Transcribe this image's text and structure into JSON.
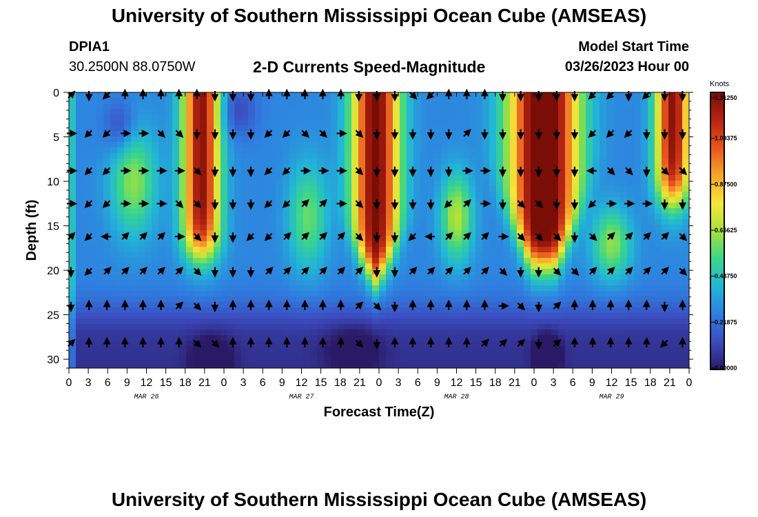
{
  "header": {
    "title": "University of Southern Mississippi Ocean Cube (AMSEAS)",
    "station": "DPIA1",
    "coords": "30.2500N  88.0750W",
    "subtitle": "2-D Currents Speed-Magnitude",
    "model_start_label": "Model Start Time",
    "model_start_value": "03/26/2023 Hour 00"
  },
  "footer": {
    "title": "University of Southern Mississippi Ocean Cube (AMSEAS)"
  },
  "chart_data": {
    "type": "heatmap",
    "title": "2-D Currents Speed-Magnitude",
    "xlabel": "Forecast Time(Z)",
    "ylabel": "Depth (ft)",
    "x_range_hours": [
      0,
      96
    ],
    "xlim": [
      0,
      96
    ],
    "ylim": [
      31,
      0
    ],
    "x_tick_hours": [
      0,
      3,
      6,
      9,
      12,
      15,
      18,
      21,
      24,
      27,
      30,
      33,
      36,
      39,
      42,
      45,
      48,
      51,
      54,
      57,
      60,
      63,
      66,
      69,
      72,
      75,
      78,
      81,
      84,
      87,
      90,
      93,
      96
    ],
    "x_tick_labels": [
      "0",
      "3",
      "6",
      "9",
      "12",
      "15",
      "18",
      "21",
      "0",
      "3",
      "6",
      "9",
      "12",
      "15",
      "18",
      "21",
      "0",
      "3",
      "6",
      "9",
      "12",
      "15",
      "18",
      "21",
      "0",
      "3",
      "6",
      "9",
      "12",
      "15",
      "18",
      "21",
      "0"
    ],
    "date_labels": [
      {
        "hour": 12,
        "text": "MAR 26"
      },
      {
        "hour": 36,
        "text": "MAR 27"
      },
      {
        "hour": 60,
        "text": "MAR 28"
      },
      {
        "hour": 84,
        "text": "MAR 29"
      }
    ],
    "y_ticks": [
      0,
      5,
      10,
      15,
      20,
      25,
      30
    ],
    "colorbar": {
      "unit": "Knots",
      "vmin": 0.0,
      "vmax": 1.3125,
      "tick_values": [
        1.3125,
        1.09375,
        0.875,
        0.65625,
        0.4375,
        0.21875,
        0.0
      ],
      "tick_labels": [
        "1.31250",
        "1.09375",
        "0.87500",
        "0.65625",
        "0.43750",
        "0.21875",
        "0.00000"
      ],
      "colors": [
        "#2a1a66",
        "#3b4cc0",
        "#2f7fe0",
        "#21b6d6",
        "#3bd68a",
        "#a6e23a",
        "#f5e63a",
        "#f8a52a",
        "#e8561f",
        "#b52412",
        "#7a0d06"
      ]
    },
    "arrow_depths": [
      0,
      4.3,
      8.5,
      12.2,
      15.9,
      19.8,
      23.7,
      27.9
    ],
    "arrow_hours": [
      0.0,
      2.78,
      5.57,
      8.35,
      11.14,
      13.92,
      16.71,
      19.49,
      22.28,
      25.06,
      27.84,
      30.63,
      33.41,
      36.2,
      38.98,
      41.77,
      44.55,
      47.34,
      50.12,
      52.9,
      55.69,
      58.47,
      61.26,
      64.04,
      66.83,
      69.61,
      72.39,
      75.18,
      77.96,
      80.75,
      83.53,
      86.32,
      89.1,
      91.89,
      94.67
    ],
    "arrow_dirs": [
      [
        "NE",
        "S",
        "SW",
        "N",
        "N",
        "N",
        "N",
        "N",
        "S",
        "S",
        "S",
        "N",
        "N",
        "N",
        "N",
        "N",
        "S",
        "S",
        "S",
        "SE",
        "SW",
        "N",
        "N",
        "N",
        "S",
        "S",
        "S",
        "S",
        "S",
        "SW",
        "SW",
        "S",
        "SW",
        "S",
        "S"
      ],
      [
        "E",
        "SW",
        "SW",
        "E",
        "E",
        "SE",
        "SE",
        "S",
        "S",
        "S",
        "S",
        "SW",
        "SW",
        "SE",
        "SE",
        "E",
        "SE",
        "S",
        "S",
        "S",
        "S",
        "S",
        "NE",
        "S",
        "S",
        "S",
        "S",
        "S",
        "S",
        "SW",
        "SW",
        "SW",
        "S",
        "S",
        "S"
      ],
      [
        "E",
        "SW",
        "SW",
        "E",
        "E",
        "E",
        "E",
        "SE",
        "S",
        "S",
        "S",
        "SW",
        "SW",
        "E",
        "E",
        "E",
        "SE",
        "S",
        "S",
        "S",
        "S",
        "S",
        "E",
        "E",
        "S",
        "S",
        "S",
        "S",
        "S",
        "W",
        "SE",
        "SE",
        "S",
        "SE",
        "SE"
      ],
      [
        "E",
        "SW",
        "SW",
        "E",
        "E",
        "E",
        "SE",
        "SE",
        "S",
        "S",
        "S",
        "SW",
        "SW",
        "NE",
        "NE",
        "E",
        "SE",
        "S",
        "S",
        "S",
        "S",
        "SW",
        "NE",
        "E",
        "S",
        "SE",
        "SE",
        "S",
        "S",
        "SW",
        "E",
        "E",
        "E",
        "S",
        "S"
      ],
      [
        "NE",
        "SW",
        "W",
        "NE",
        "NE",
        "NE",
        "E",
        "SE",
        "S",
        "S",
        "SW",
        "SW",
        "NE",
        "NE",
        "NE",
        "NE",
        "SE",
        "S",
        "S",
        "SW",
        "W",
        "NE",
        "NE",
        "NE",
        "E",
        "SE",
        "SE",
        "SE",
        "S",
        "SE",
        "NE",
        "NE",
        "NE",
        "NE",
        "SE"
      ],
      [
        "S",
        "SW",
        "NE",
        "NE",
        "NE",
        "NE",
        "NE",
        "SE",
        "S",
        "S",
        "S",
        "NE",
        "NE",
        "NE",
        "NE",
        "NE",
        "NE",
        "S",
        "S",
        "NE",
        "NE",
        "NE",
        "NE",
        "NE",
        "SE",
        "S",
        "S",
        "SE",
        "SE",
        "NE",
        "NE",
        "NE",
        "NE",
        "NE",
        "SE"
      ],
      [
        "S",
        "N",
        "N",
        "N",
        "N",
        "N",
        "NE",
        "SE",
        "S",
        "N",
        "N",
        "N",
        "N",
        "N",
        "N",
        "N",
        "NE",
        "SE",
        "S",
        "N",
        "N",
        "N",
        "N",
        "N",
        "E",
        "SE",
        "S",
        "NE",
        "N",
        "N",
        "N",
        "N",
        "N",
        "S",
        "N"
      ],
      [
        "NE",
        "N",
        "N",
        "N",
        "N",
        "N",
        "N",
        "SE",
        "SE",
        "N",
        "N",
        "N",
        "N",
        "N",
        "N",
        "N",
        "SE",
        "S",
        "N",
        "N",
        "N",
        "N",
        "N",
        "NE",
        "NE",
        "NE",
        "S",
        "NE",
        "N",
        "N",
        "N",
        "N",
        "N",
        "SW",
        "N"
      ]
    ]
  }
}
